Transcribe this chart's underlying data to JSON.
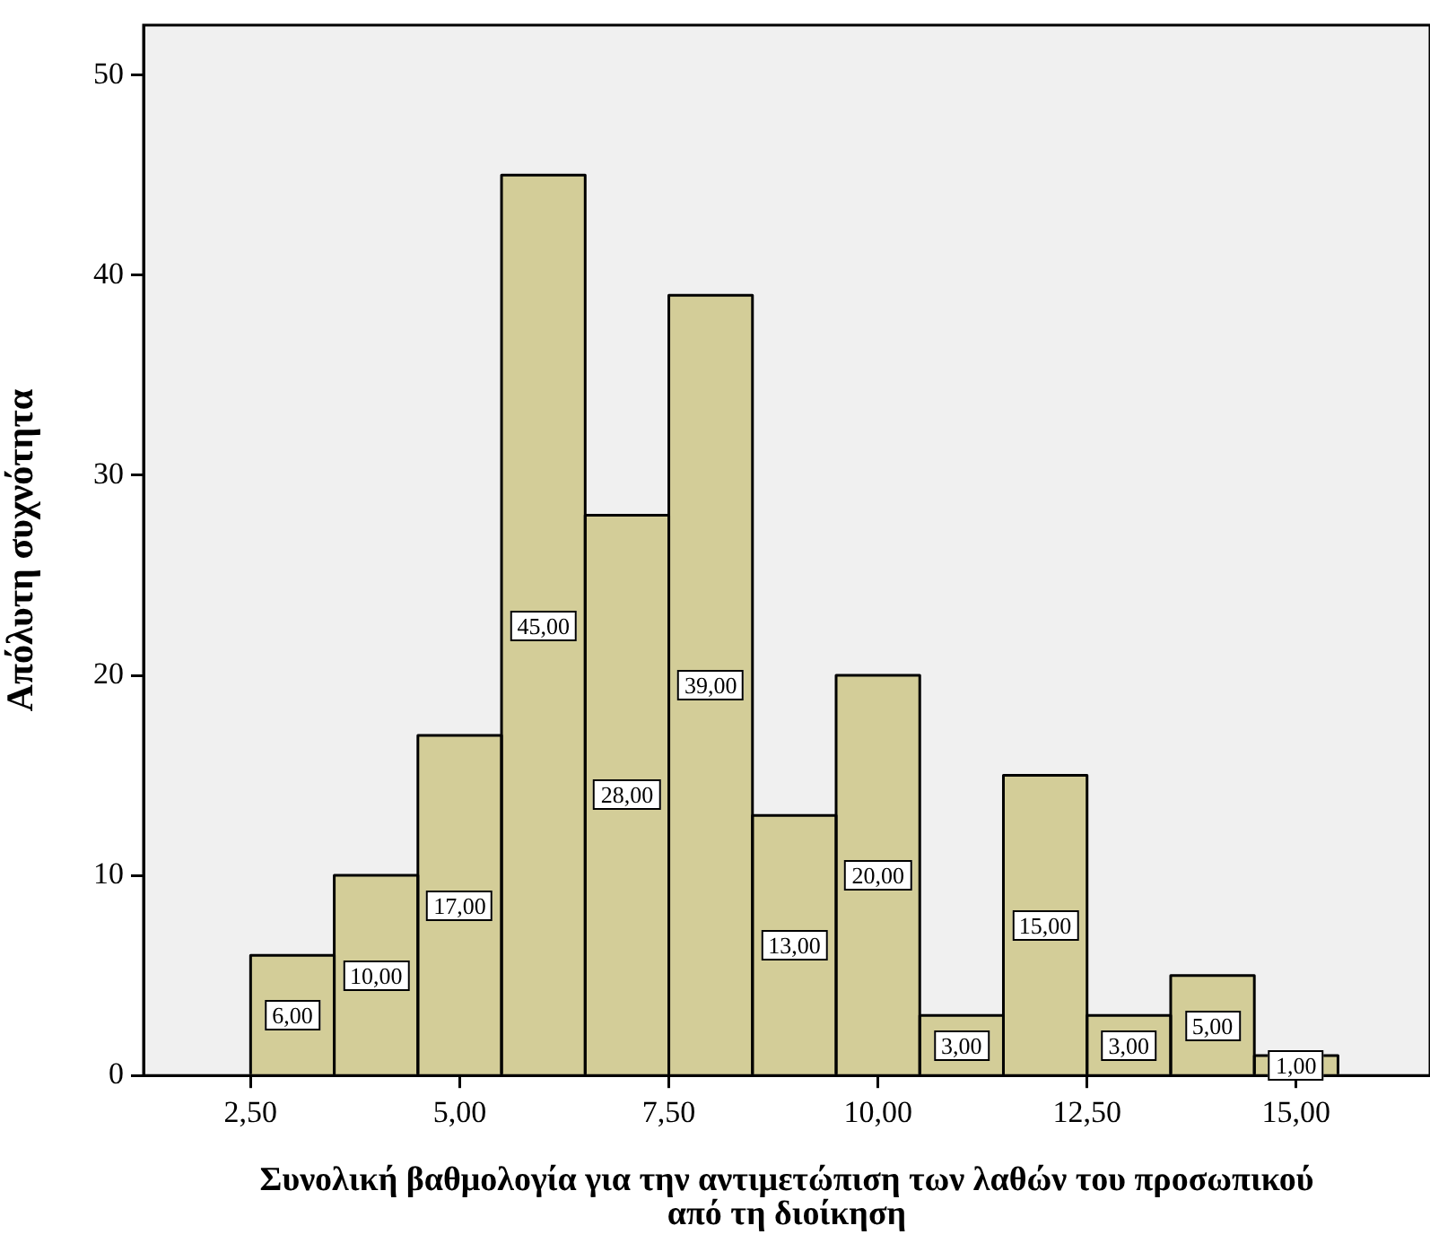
{
  "chart_data": {
    "type": "histogram",
    "xlabel": "Συνολική βαθμολογία για την αντιμετώπιση των λαθών του προσωπικού από τη διοίκηση",
    "ylabel": "Απόλυτη συχνότητα",
    "bins": [
      2.5,
      3.5,
      4.5,
      5.5,
      6.5,
      7.5,
      8.5,
      9.5,
      10.5,
      11.5,
      12.5,
      13.5,
      14.5,
      15.5
    ],
    "values": [
      6,
      10,
      17,
      45,
      28,
      39,
      13,
      20,
      3,
      15,
      3,
      5,
      1
    ],
    "value_labels": [
      "6,00",
      "10,00",
      "17,00",
      "45,00",
      "28,00",
      "39,00",
      "13,00",
      "20,00",
      "3,00",
      "15,00",
      "3,00",
      "5,00",
      "1,00"
    ],
    "color": "#d3cd98",
    "xlim": [
      1.22,
      16.6
    ],
    "ylim": [
      0,
      52.5
    ],
    "xticks": [
      {
        "value": 2.5,
        "label": "2,50"
      },
      {
        "value": 5,
        "label": "5,00"
      },
      {
        "value": 7.5,
        "label": "7,50"
      },
      {
        "value": 10,
        "label": "10,00"
      },
      {
        "value": 12.5,
        "label": "12,50"
      },
      {
        "value": 15,
        "label": "15,00"
      }
    ],
    "yticks": [
      0,
      10,
      20,
      30,
      40,
      50
    ],
    "grid": false
  }
}
